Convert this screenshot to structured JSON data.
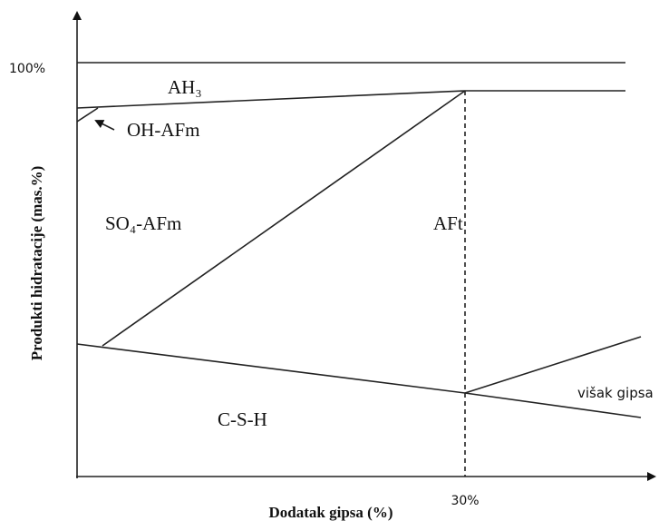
{
  "y_axis_label": "Produkti hidratacije (mas.%)",
  "x_axis_label": "Dodatak gipsa (%)",
  "y_tick": "100%",
  "x_tick": "30%",
  "regions": [
    "AH₃",
    "OH-AFm",
    "SO₄-AFm",
    "AFt",
    "C-S-H",
    "višak gipsa"
  ]
}
